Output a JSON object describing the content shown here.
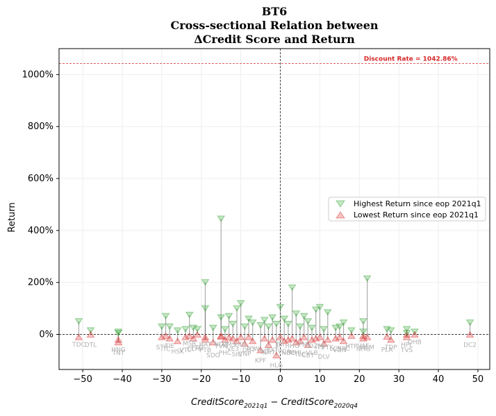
{
  "chart_data": {
    "type": "scatter",
    "title_lines": [
      "BT6",
      "Cross-sectional Relation between",
      "ΔCredit Score and Return"
    ],
    "ylabel": "Return",
    "xlabel": {
      "main": "CreditScore",
      "sub1": "2021q1",
      "mid": " − CreditScore",
      "sub2": "2020q4"
    },
    "xlim": [
      -56,
      53
    ],
    "ylim": [
      -135,
      1100
    ],
    "x_ticks": [
      -50,
      -40,
      -30,
      -20,
      -10,
      0,
      10,
      20,
      30,
      40,
      50
    ],
    "x_tick_labels": [
      "−50",
      "−40",
      "−30",
      "−20",
      "−10",
      "0",
      "10",
      "20",
      "30",
      "40",
      "50"
    ],
    "y_ticks": [
      0,
      200,
      400,
      600,
      800,
      1000
    ],
    "y_tick_labels": [
      "0%",
      "200%",
      "400%",
      "600%",
      "800%",
      "1000%"
    ],
    "grid": true,
    "legend_placement": "center-right",
    "discount_rate": {
      "value": 1042.86,
      "label": "Discount Rate = 1042.86%"
    },
    "colors": {
      "high": "#2ca02c",
      "low": "#d62728",
      "stem": "#555555",
      "ticker": "#b0b0b0"
    },
    "series": [
      {
        "name": "Highest Return since eop 2021q1",
        "marker": "triangle-down"
      },
      {
        "name": "Lowest Return since eop 2021q1",
        "marker": "triangle-up"
      }
    ],
    "stocks": [
      {
        "t": "TDC",
        "x": -51,
        "hi": 50,
        "lo": -10
      },
      {
        "t": "DTL",
        "x": -48,
        "hi": 15,
        "lo": 0
      },
      {
        "t": "TNT",
        "x": -41,
        "hi": 10,
        "lo": -20
      },
      {
        "t": "HNG",
        "x": -41,
        "hi": 5,
        "lo": -30
      },
      {
        "t": "STP",
        "x": -30,
        "hi": 30,
        "lo": -10
      },
      {
        "t": "ITC",
        "x": -29,
        "hi": 70,
        "lo": -5
      },
      {
        "t": "TIE",
        "x": -28,
        "hi": 30,
        "lo": -15
      },
      {
        "t": "HSK",
        "x": -26,
        "hi": 15,
        "lo": -25
      },
      {
        "t": "VTC",
        "x": -24,
        "hi": 20,
        "lo": -10
      },
      {
        "t": "MSR",
        "x": -23,
        "hi": 75,
        "lo": -5
      },
      {
        "t": "CLH",
        "x": -22,
        "hi": 25,
        "lo": -15
      },
      {
        "t": "PTD",
        "x": -21,
        "hi": 20,
        "lo": 0
      },
      {
        "t": "HAT",
        "x": -19,
        "hi": 200,
        "lo": -10
      },
      {
        "t": "PTB",
        "x": -19,
        "hi": 100,
        "lo": -20
      },
      {
        "t": "SDG",
        "x": -17,
        "hi": 25,
        "lo": -30
      },
      {
        "t": "NDX",
        "x": -15,
        "hi": 445,
        "lo": -8
      },
      {
        "t": "TVN",
        "x": -15,
        "hi": 65,
        "lo": -5
      },
      {
        "t": "PHC",
        "x": -14,
        "hi": 20,
        "lo": -20
      },
      {
        "t": "CMS",
        "x": -13,
        "hi": 70,
        "lo": -10
      },
      {
        "t": "VE3",
        "x": -12,
        "hi": 40,
        "lo": -15
      },
      {
        "t": "SIC",
        "x": -11,
        "hi": 100,
        "lo": -25
      },
      {
        "t": "HID",
        "x": -10,
        "hi": 120,
        "lo": -10
      },
      {
        "t": "VNP",
        "x": -9,
        "hi": 30,
        "lo": -35
      },
      {
        "t": "DBT",
        "x": -8,
        "hi": 60,
        "lo": -10
      },
      {
        "t": "TCW",
        "x": -7,
        "hi": 45,
        "lo": -25
      },
      {
        "t": "KPF",
        "x": -5,
        "hi": 35,
        "lo": -60
      },
      {
        "t": "SCI",
        "x": -4,
        "hi": 55,
        "lo": -15
      },
      {
        "t": "NHT",
        "x": -3,
        "hi": 30,
        "lo": -40
      },
      {
        "t": "PXT",
        "x": -2,
        "hi": 65,
        "lo": -20
      },
      {
        "t": "HLG",
        "x": -1,
        "hi": 40,
        "lo": -80
      },
      {
        "t": "BII",
        "x": 0,
        "hi": 105,
        "lo": -10
      },
      {
        "t": "VCA",
        "x": 1,
        "hi": 60,
        "lo": -25
      },
      {
        "t": "NBC",
        "x": 2,
        "hi": 40,
        "lo": -20
      },
      {
        "t": "HHG",
        "x": 3,
        "hi": 180,
        "lo": -15
      },
      {
        "t": "MHL",
        "x": 4,
        "hi": 80,
        "lo": -30
      },
      {
        "t": "TLC",
        "x": 5,
        "hi": 30,
        "lo": -25
      },
      {
        "t": "PMJ",
        "x": 6,
        "hi": 70,
        "lo": -10
      },
      {
        "t": "CBT",
        "x": 7,
        "hi": 50,
        "lo": -40
      },
      {
        "t": "VLB",
        "x": 8,
        "hi": 25,
        "lo": -20
      },
      {
        "t": "DZM",
        "x": 9,
        "hi": 95,
        "lo": -15
      },
      {
        "t": "ITS",
        "x": 10,
        "hi": 105,
        "lo": -10
      },
      {
        "t": "DLV",
        "x": 11,
        "hi": 20,
        "lo": -35
      },
      {
        "t": "PTK",
        "x": 12,
        "hi": 85,
        "lo": -20
      },
      {
        "t": "LCS",
        "x": 14,
        "hi": 25,
        "lo": -15
      },
      {
        "t": "VDN",
        "x": 15,
        "hi": 30,
        "lo": -10
      },
      {
        "t": "NRC",
        "x": 16,
        "hi": 45,
        "lo": -25
      },
      {
        "t": "HTP",
        "x": 18,
        "hi": 15,
        "lo": -5
      },
      {
        "t": "NHG",
        "x": 21,
        "hi": 50,
        "lo": -5
      },
      {
        "t": "VAF",
        "x": 21,
        "hi": 10,
        "lo": -15
      },
      {
        "t": "HSM",
        "x": 22,
        "hi": 215,
        "lo": -10
      },
      {
        "t": "PLA",
        "x": 27,
        "hi": 20,
        "lo": -8
      },
      {
        "t": "TDP",
        "x": 28,
        "hi": 15,
        "lo": -20
      },
      {
        "t": "HPL",
        "x": 32,
        "hi": 20,
        "lo": 0
      },
      {
        "t": "TVS",
        "x": 32,
        "hi": 5,
        "lo": -10
      },
      {
        "t": "DHB",
        "x": 34,
        "hi": 10,
        "lo": 0
      },
      {
        "t": "DC2",
        "x": 48,
        "hi": 45,
        "lo": 0
      }
    ]
  }
}
